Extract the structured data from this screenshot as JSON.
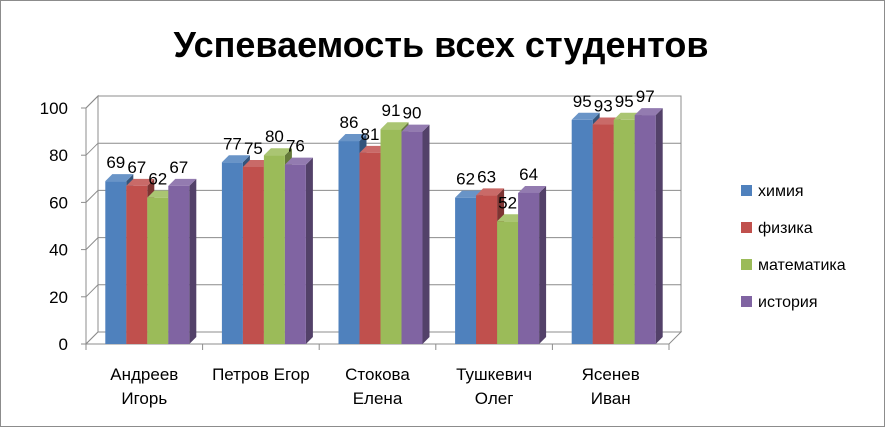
{
  "chart_data": {
    "type": "bar",
    "title": "Успеваемость всех студентов",
    "xlabel": "",
    "ylabel": "",
    "ylim": [
      0,
      100
    ],
    "yticks": [
      0,
      20,
      40,
      60,
      80,
      100
    ],
    "grid": true,
    "three_d": true,
    "legend_position": "right",
    "categories": [
      [
        "Андреев",
        "Игорь"
      ],
      [
        "Петров Егор"
      ],
      [
        "Стокова",
        "Елена"
      ],
      [
        "Тушкевич",
        "Олег"
      ],
      [
        "Ясенев",
        "Иван"
      ]
    ],
    "series": [
      {
        "name": "химия",
        "color": "#4f81bd",
        "values": [
          69,
          77,
          86,
          62,
          95
        ]
      },
      {
        "name": "физика",
        "color": "#c0504d",
        "values": [
          67,
          75,
          81,
          63,
          93
        ]
      },
      {
        "name": "математика",
        "color": "#9bbb59",
        "values": [
          62,
          80,
          91,
          52,
          95
        ]
      },
      {
        "name": "история",
        "color": "#8064a2",
        "values": [
          67,
          76,
          90,
          64,
          97
        ]
      }
    ]
  }
}
